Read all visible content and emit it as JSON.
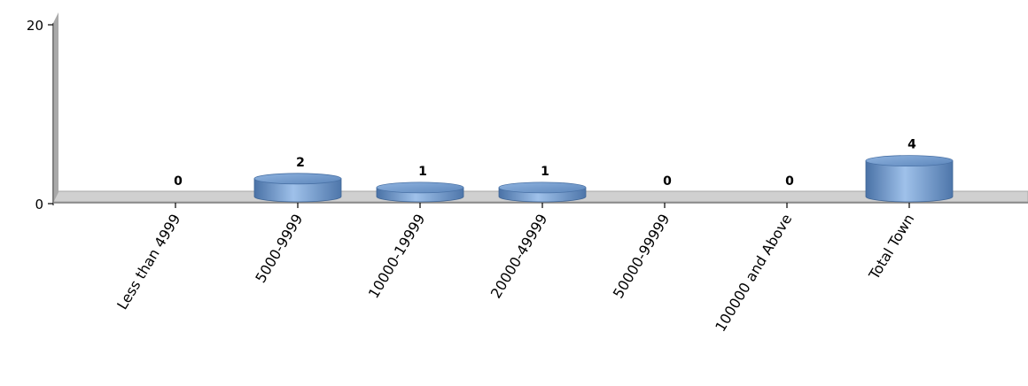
{
  "chart_data": {
    "type": "bar",
    "style": "3d-cylinder",
    "categories": [
      "Less than 4999",
      "5000-9999",
      "10000-19999",
      "20000-49999",
      "50000-99999",
      "100000 and Above",
      "Total Town"
    ],
    "series": [
      {
        "values": [
          0,
          2,
          1,
          1,
          0,
          0,
          4
        ],
        "color": "#6f98c8"
      }
    ],
    "data_labels": [
      "0",
      "2",
      "1",
      "1",
      "0",
      "0",
      "4"
    ],
    "y_ticks": [
      "0",
      "20"
    ],
    "ylim": [
      0,
      20
    ],
    "grid": false,
    "legend": false,
    "floor_color": "#cccccc",
    "axis_color": "#808080"
  }
}
